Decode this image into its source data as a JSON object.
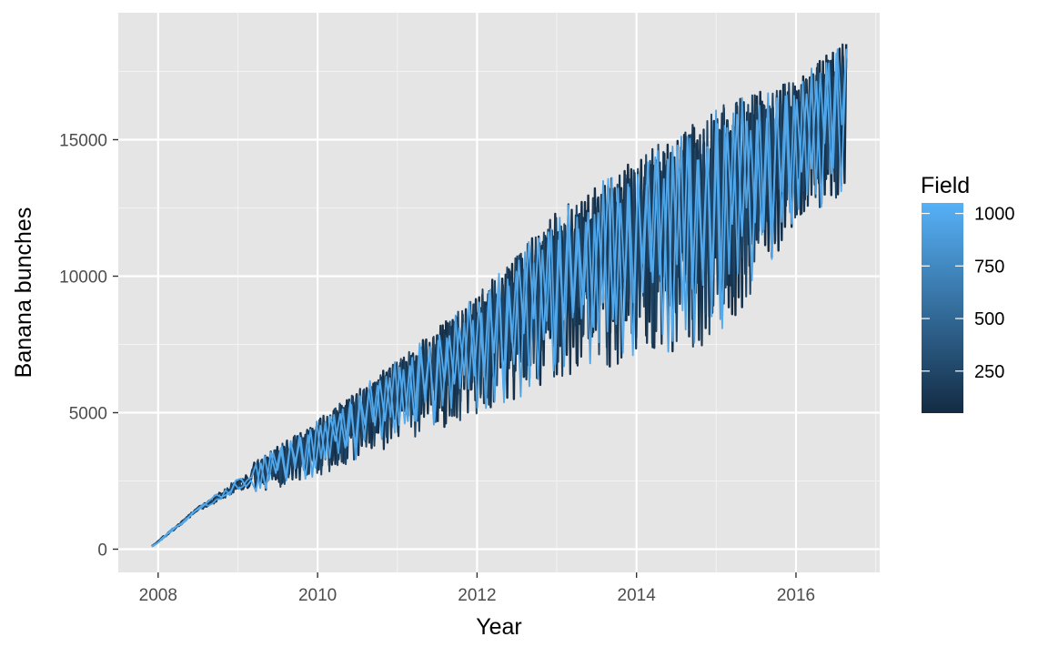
{
  "chart_data": {
    "type": "line",
    "title": "",
    "xlabel": "Year",
    "ylabel": "Banana bunches",
    "xlim": [
      2007.5,
      2017.05
    ],
    "ylim": [
      -850,
      19650
    ],
    "x_ticks": [
      2008,
      2010,
      2012,
      2014,
      2016
    ],
    "x_tick_labels": [
      "2008",
      "2010",
      "2012",
      "2014",
      "2016"
    ],
    "y_ticks": [
      0,
      5000,
      10000,
      15000
    ],
    "y_tick_labels": [
      "0",
      "5000",
      "10000",
      "15000"
    ],
    "grid": true,
    "legend": {
      "title": "Field",
      "type": "continuous-colorbar",
      "placement": "right",
      "range": [
        50,
        1050
      ],
      "breaks": [
        250,
        500,
        750,
        1000
      ],
      "break_labels": [
        "250",
        "500",
        "750",
        "1000"
      ],
      "color_low": "#132b43",
      "color_high": "#56b1f7"
    },
    "series_description_points": [
      {
        "x": 2007.92,
        "y": 120
      },
      {
        "x": 2008.5,
        "y": 1250
      },
      {
        "x": 2009.0,
        "y": 2000
      },
      {
        "x": 2010.0,
        "y": 3800
      },
      {
        "x": 2011.0,
        "y": 5300
      },
      {
        "x": 2012.0,
        "y": 7200
      },
      {
        "x": 2013.0,
        "y": 8800
      },
      {
        "x": 2014.0,
        "y": 10400
      },
      {
        "x": 2015.0,
        "y": 12000
      },
      {
        "x": 2016.0,
        "y": 13600
      },
      {
        "x": 2016.63,
        "y": 15000
      }
    ],
    "series_envelope": {
      "upper": [
        [
          2007.92,
          150
        ],
        [
          2008.5,
          1600
        ],
        [
          2009.0,
          2800
        ],
        [
          2010.0,
          4800
        ],
        [
          2011.0,
          7000
        ],
        [
          2012.0,
          9400
        ],
        [
          2013.0,
          12500
        ],
        [
          2014.0,
          14500
        ],
        [
          2015.0,
          16400
        ],
        [
          2016.0,
          17300
        ],
        [
          2016.63,
          18800
        ]
      ],
      "lower": [
        [
          2007.92,
          0
        ],
        [
          2008.5,
          1300
        ],
        [
          2009.0,
          1800
        ],
        [
          2010.0,
          2600
        ],
        [
          2011.0,
          3800
        ],
        [
          2012.0,
          4800
        ],
        [
          2013.0,
          6000
        ],
        [
          2014.0,
          6800
        ],
        [
          2015.0,
          7200
        ],
        [
          2016.0,
          11800
        ],
        [
          2016.63,
          13000
        ]
      ]
    },
    "colors": {
      "panel_background": "#e5e5e5",
      "grid_major": "#ffffff",
      "grid_minor": "#f2f2f2",
      "tick_mark": "#333333"
    }
  }
}
